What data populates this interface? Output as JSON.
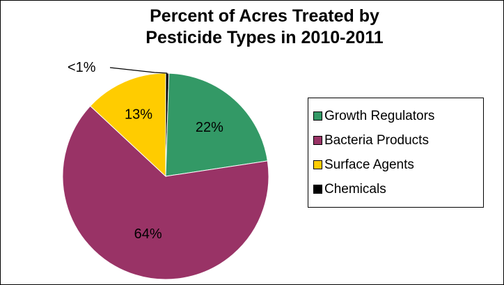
{
  "chart_data": {
    "type": "pie",
    "title_lines": [
      "Percent of Acres Treated by",
      "Pesticide Types in 2010-2011"
    ],
    "slices": [
      {
        "name": "Chemicals",
        "value": 0.5,
        "label": "<1%",
        "color": "#000000"
      },
      {
        "name": "Growth Regulators",
        "value": 22,
        "label": "22%",
        "color": "#339966"
      },
      {
        "name": "Bacteria Products",
        "value": 64,
        "label": "64%",
        "color": "#993366"
      },
      {
        "name": "Surface Agents",
        "value": 13,
        "label": "13%",
        "color": "#FFCC00"
      }
    ],
    "legend_order": [
      "Growth Regulators",
      "Bacteria Products",
      "Surface Agents",
      "Chemicals"
    ],
    "legend_position": "right"
  }
}
